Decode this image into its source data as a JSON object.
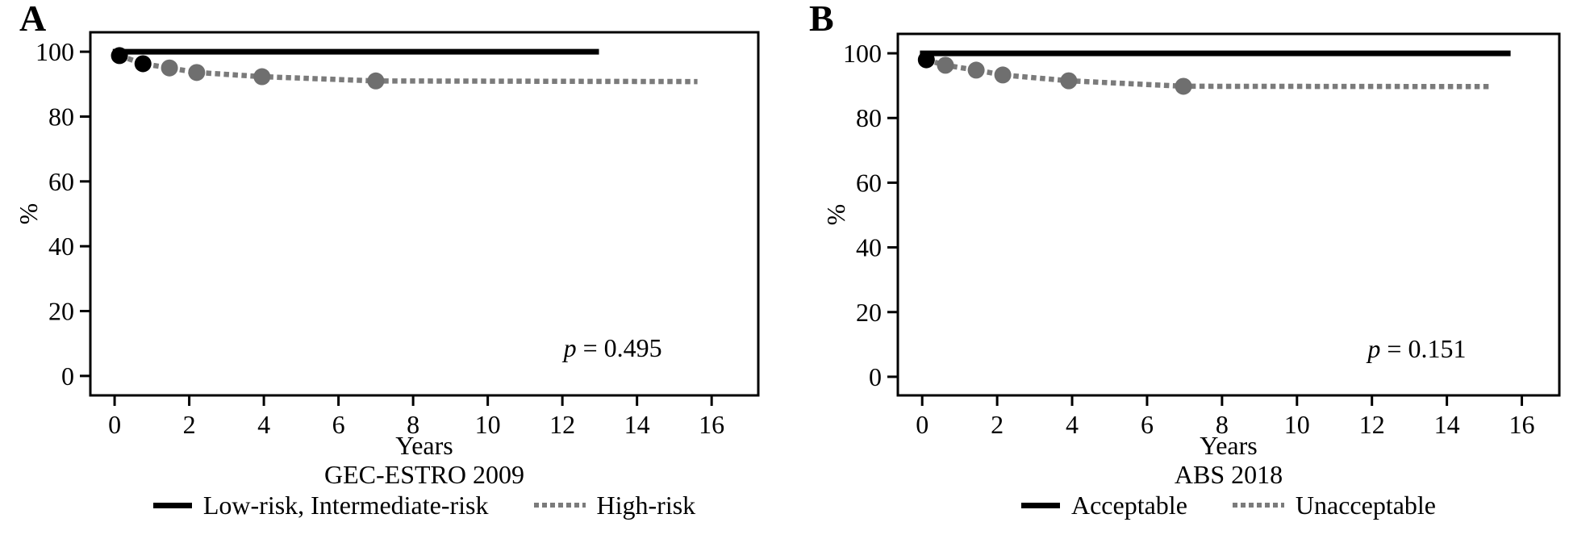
{
  "figure": {
    "background": "#ffffff",
    "axis_color": "#000000",
    "text_color": "#000000"
  },
  "panel_labels": [
    "A",
    "B"
  ],
  "chart_data": [
    {
      "type": "line",
      "title": "GEC-ESTRO 2009",
      "xlabel": "Years",
      "ylabel": "%",
      "xlim": [
        -0.65,
        17.25
      ],
      "ylim": [
        -6,
        106
      ],
      "xticks": [
        0,
        2,
        4,
        6,
        8,
        10,
        12,
        14,
        16
      ],
      "yticks": [
        0,
        20,
        40,
        60,
        80,
        100
      ],
      "grid": false,
      "legend_position": "bottom",
      "p_label": {
        "symbol": "p",
        "rest": " = 0.495"
      },
      "p_pos": [
        13.35,
        6.0
      ],
      "series": [
        {
          "name": "Low-risk, Intermediate-risk",
          "style": "solid",
          "color": "#000000",
          "width": 7,
          "x": [
            -0.05,
            12.98
          ],
          "y": [
            100.0,
            100.0
          ],
          "marker_color": "#000000",
          "markers": [
            {
              "x": 0.13,
              "y": 98.8
            },
            {
              "x": 0.76,
              "y": 96.3
            }
          ]
        },
        {
          "name": "High-risk",
          "style": "dotted",
          "color": "#7b7b7b",
          "width": 6.5,
          "x": [
            0.13,
            0.76,
            1.47,
            2.2,
            3.95,
            7.0,
            15.62
          ],
          "y": [
            98.8,
            96.3,
            95.0,
            93.6,
            92.3,
            91.0,
            90.8
          ],
          "marker_color": "#6f6f6f",
          "markers": [
            {
              "x": 1.47,
              "y": 95.0
            },
            {
              "x": 2.2,
              "y": 93.6
            },
            {
              "x": 3.95,
              "y": 92.3
            },
            {
              "x": 7.0,
              "y": 91.0
            }
          ]
        }
      ]
    },
    {
      "type": "line",
      "title": "ABS 2018",
      "xlabel": "Years",
      "ylabel": "%",
      "xlim": [
        -0.65,
        17.0
      ],
      "ylim": [
        -5.75,
        106
      ],
      "xticks": [
        0,
        2,
        4,
        6,
        8,
        10,
        12,
        14,
        16
      ],
      "yticks": [
        0,
        20,
        40,
        60,
        80,
        100
      ],
      "grid": false,
      "legend_position": "bottom",
      "p_label": {
        "symbol": "p",
        "rest": " = 0.151"
      },
      "p_pos": [
        13.2,
        6.0
      ],
      "series": [
        {
          "name": "Acceptable",
          "style": "solid",
          "color": "#000000",
          "width": 7,
          "x": [
            -0.06,
            15.7
          ],
          "y": [
            100.0,
            100.0
          ],
          "marker_color": "#000000",
          "markers": [
            {
              "x": 0.11,
              "y": 98.0
            }
          ]
        },
        {
          "name": "Unacceptable",
          "style": "dotted",
          "color": "#7b7b7b",
          "width": 6.5,
          "x": [
            0.11,
            0.62,
            1.44,
            2.15,
            3.91,
            6.97,
            15.14
          ],
          "y": [
            98.0,
            96.3,
            94.8,
            93.3,
            91.5,
            89.8,
            89.7
          ],
          "marker_color": "#6f6f6f",
          "markers": [
            {
              "x": 0.62,
              "y": 96.3
            },
            {
              "x": 1.44,
              "y": 94.8
            },
            {
              "x": 2.15,
              "y": 93.3
            },
            {
              "x": 3.91,
              "y": 91.5
            },
            {
              "x": 6.97,
              "y": 89.8
            }
          ]
        }
      ]
    }
  ]
}
